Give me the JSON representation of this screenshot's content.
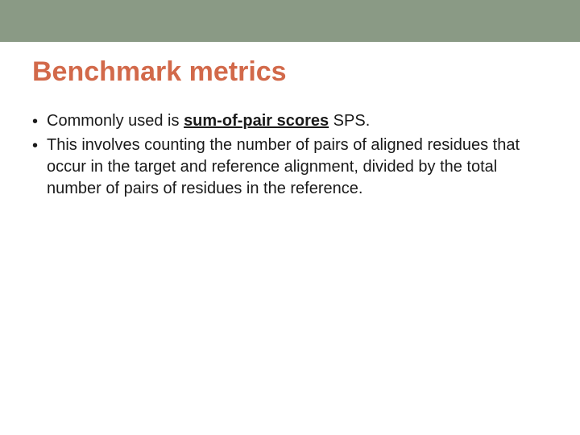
{
  "slide": {
    "title": "Benchmark metrics",
    "title_color": "#d2694a",
    "title_fontsize": 34,
    "topbar_color": "#8a9a85",
    "background_color": "#ffffff",
    "body_fontsize": 20,
    "body_color": "#1a1a1a",
    "bullets": [
      {
        "pre": "Commonly used is ",
        "emph": "sum-of-pair scores",
        "post": " SPS."
      },
      {
        "pre": "This involves counting the number of pairs of aligned residues that occur in the target and reference alignment, divided by the total number of pairs of residues in the reference.",
        "emph": "",
        "post": ""
      }
    ]
  }
}
